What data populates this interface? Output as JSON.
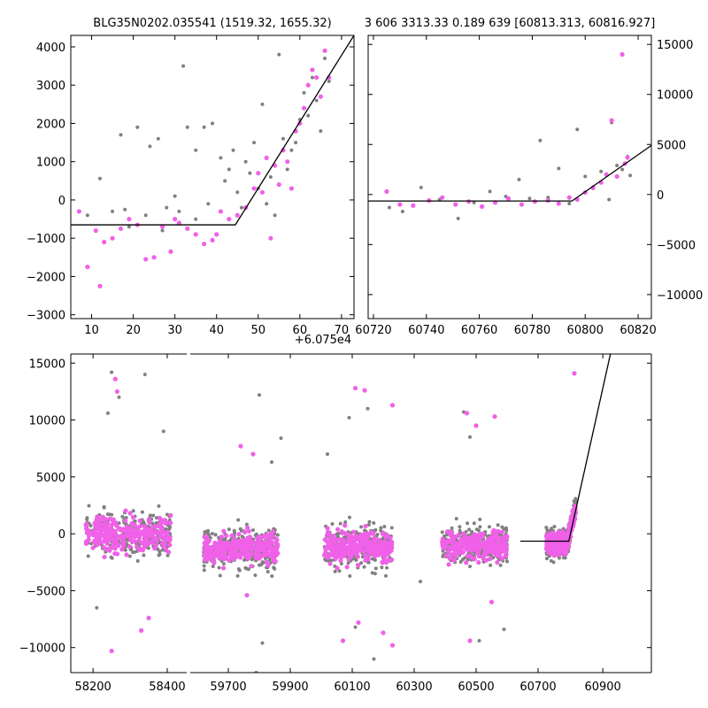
{
  "figure": {
    "title_left": "BLG35N0202.035541 (1519.32, 1655.32)",
    "title_right": "3 606 3313.33 0.189 639 [60813.313, 60816.927]",
    "offset_label": "+6.075e4"
  },
  "colors": {
    "gray": "#808080",
    "magenta": "#f060e8",
    "line": "#000000"
  },
  "chart_data": [
    {
      "name": "zoom-left",
      "type": "scatter",
      "xlim": [
        5,
        73
      ],
      "ylim": [
        -3100,
        4300
      ],
      "xticks": [
        10,
        20,
        30,
        40,
        50,
        60,
        70
      ],
      "xtick_labels": [
        "10",
        "20",
        "30",
        "40",
        "50",
        "60",
        "70"
      ],
      "yticks": [
        -3000,
        -2000,
        -1000,
        0,
        1000,
        2000,
        3000,
        4000
      ],
      "ytick_labels": [
        "−3000",
        "−2000",
        "−1000",
        "0",
        "1000",
        "2000",
        "3000",
        "4000"
      ],
      "x_offset_label": "+6.075e4",
      "series": [
        {
          "color": "#808080",
          "points": [
            [
              9,
              -400
            ],
            [
              12,
              560
            ],
            [
              15,
              -300
            ],
            [
              17,
              1700
            ],
            [
              19,
              -700
            ],
            [
              21,
              1900
            ],
            [
              24,
              1400
            ],
            [
              26,
              1600
            ],
            [
              28,
              -200
            ],
            [
              30,
              100
            ],
            [
              32,
              3500
            ],
            [
              33,
              1900
            ],
            [
              35,
              1300
            ],
            [
              37,
              1900
            ],
            [
              39,
              2000
            ],
            [
              41,
              1100
            ],
            [
              43,
              800
            ],
            [
              45,
              200
            ],
            [
              47,
              1000
            ],
            [
              49,
              1500
            ],
            [
              51,
              2500
            ],
            [
              53,
              600
            ],
            [
              55,
              3800
            ],
            [
              56,
              1600
            ],
            [
              58,
              1300
            ],
            [
              60,
              2100
            ],
            [
              62,
              2200
            ],
            [
              64,
              2600
            ],
            [
              65,
              1800
            ],
            [
              66,
              3700
            ],
            [
              35,
              -500
            ],
            [
              46,
              -200
            ],
            [
              52,
              -100
            ],
            [
              44,
              1300
            ],
            [
              48,
              700
            ],
            [
              57,
              800
            ],
            [
              59,
              1500
            ],
            [
              61,
              2800
            ],
            [
              63,
              3200
            ],
            [
              67,
              3100
            ],
            [
              18,
              -250
            ],
            [
              23,
              -400
            ],
            [
              27,
              -800
            ],
            [
              31,
              -300
            ],
            [
              38,
              -100
            ],
            [
              42,
              500
            ],
            [
              50,
              300
            ],
            [
              54,
              -400
            ]
          ]
        },
        {
          "color": "#f060e8",
          "points": [
            [
              7,
              -300
            ],
            [
              9,
              -1750
            ],
            [
              11,
              -800
            ],
            [
              12,
              -2250
            ],
            [
              13,
              -1100
            ],
            [
              15,
              -1000
            ],
            [
              17,
              -750
            ],
            [
              19,
              -500
            ],
            [
              21,
              -650
            ],
            [
              23,
              -1550
            ],
            [
              25,
              -1500
            ],
            [
              27,
              -700
            ],
            [
              29,
              -1350
            ],
            [
              31,
              -600
            ],
            [
              33,
              -750
            ],
            [
              35,
              -900
            ],
            [
              37,
              -1150
            ],
            [
              39,
              -1050
            ],
            [
              41,
              -300
            ],
            [
              43,
              -500
            ],
            [
              45,
              -400
            ],
            [
              47,
              -200
            ],
            [
              49,
              300
            ],
            [
              51,
              200
            ],
            [
              53,
              -1000
            ],
            [
              55,
              400
            ],
            [
              57,
              1000
            ],
            [
              58,
              300
            ],
            [
              59,
              1800
            ],
            [
              60,
              2000
            ],
            [
              61,
              2400
            ],
            [
              62,
              3000
            ],
            [
              63,
              3400
            ],
            [
              64,
              3200
            ],
            [
              65,
              2700
            ],
            [
              66,
              3900
            ],
            [
              67,
              3200
            ],
            [
              30,
              -500
            ],
            [
              40,
              -900
            ],
            [
              50,
              700
            ],
            [
              52,
              1100
            ],
            [
              54,
              900
            ],
            [
              56,
              1300
            ]
          ]
        }
      ],
      "model_line": [
        [
          5,
          -650
        ],
        [
          44.5,
          -650
        ],
        [
          73,
          4300
        ]
      ]
    },
    {
      "name": "zoom-right",
      "type": "scatter",
      "xlim": [
        60718,
        60825
      ],
      "ylim": [
        -12400,
        15900
      ],
      "xticks": [
        60720,
        60740,
        60760,
        60780,
        60800,
        60820
      ],
      "xtick_labels": [
        "60720",
        "60740",
        "60760",
        "60780",
        "60800",
        "60820"
      ],
      "yticks": [
        -10000,
        -5000,
        0,
        5000,
        10000,
        15000
      ],
      "ytick_labels": [
        "−10000",
        "−5000",
        "0",
        "5000",
        "10000",
        "15000"
      ],
      "series": [
        {
          "color": "#808080",
          "points": [
            [
              60726,
              -1300
            ],
            [
              60731,
              -1700
            ],
            [
              60738,
              700
            ],
            [
              60745,
              -500
            ],
            [
              60752,
              -2400
            ],
            [
              60758,
              -800
            ],
            [
              60764,
              300
            ],
            [
              60770,
              -200
            ],
            [
              60775,
              1500
            ],
            [
              60779,
              -400
            ],
            [
              60783,
              5400
            ],
            [
              60786,
              -300
            ],
            [
              60790,
              2600
            ],
            [
              60794,
              -900
            ],
            [
              60797,
              6500
            ],
            [
              60800,
              1800
            ],
            [
              60803,
              600
            ],
            [
              60806,
              2300
            ],
            [
              60809,
              -500
            ],
            [
              60810,
              7200
            ],
            [
              60812,
              2900
            ],
            [
              60814,
              2500
            ],
            [
              60816,
              3800
            ],
            [
              60817,
              1900
            ]
          ]
        },
        {
          "color": "#f060e8",
          "points": [
            [
              60725,
              300
            ],
            [
              60730,
              -1000
            ],
            [
              60735,
              -1100
            ],
            [
              60741,
              -600
            ],
            [
              60746,
              -300
            ],
            [
              60751,
              -1000
            ],
            [
              60756,
              -700
            ],
            [
              60761,
              -1200
            ],
            [
              60766,
              -800
            ],
            [
              60771,
              -400
            ],
            [
              60776,
              -1000
            ],
            [
              60781,
              -700
            ],
            [
              60786,
              -600
            ],
            [
              60790,
              -900
            ],
            [
              60794,
              -300
            ],
            [
              60797,
              -500
            ],
            [
              60800,
              200
            ],
            [
              60803,
              700
            ],
            [
              60806,
              1200
            ],
            [
              60808,
              2000
            ],
            [
              60810,
              7400
            ],
            [
              60812,
              1800
            ],
            [
              60814,
              14000
            ],
            [
              60815,
              3100
            ],
            [
              60816,
              3700
            ]
          ]
        }
      ],
      "model_line": [
        [
          60718,
          -650
        ],
        [
          60795,
          -650
        ],
        [
          60825,
          4900
        ]
      ]
    },
    {
      "name": "full-lightcurve",
      "type": "scatter",
      "ylim": [
        -12200,
        15800
      ],
      "yticks": [
        -10000,
        -5000,
        0,
        5000,
        10000,
        15000
      ],
      "ytick_labels": [
        "−10000",
        "−5000",
        "0",
        "5000",
        "10000",
        "15000"
      ],
      "segments": [
        {
          "xlim": [
            58140,
            58455
          ],
          "xticks": [
            58200,
            58400
          ],
          "xtick_labels": [
            "58200",
            "58400"
          ]
        },
        {
          "xlim": [
            59580,
            60700
          ],
          "xticks": [
            59700,
            59900,
            60100,
            60300,
            60500
          ],
          "xtick_labels": [
            "59700",
            "59900",
            "60100",
            "60300",
            "60500"
          ]
        },
        {
          "xlim": [
            60700,
            61050
          ],
          "xticks": [
            60700,
            60900
          ],
          "xtick_labels": [
            "60700",
            "60900"
          ]
        }
      ],
      "seasons": [
        {
          "x_range": [
            58180,
            58410
          ],
          "center": 0,
          "spread": 1300
        },
        {
          "x_range": [
            59620,
            59860
          ],
          "center": -1300,
          "spread": 1100
        },
        {
          "x_range": [
            60010,
            60230
          ],
          "center": -1100,
          "spread": 1100
        },
        {
          "x_range": [
            60390,
            60600
          ],
          "center": -1000,
          "spread": 1000
        },
        {
          "x_range": [
            60725,
            60817
          ],
          "center": -800,
          "spread": 700
        }
      ],
      "outliers": [
        {
          "color": "#808080",
          "points": [
            [
              58250,
              14200
            ],
            [
              58240,
              10600
            ],
            [
              58270,
              12000
            ],
            [
              58340,
              14000
            ],
            [
              58390,
              9000
            ],
            [
              58210,
              -6500
            ],
            [
              59800,
              12200
            ],
            [
              59870,
              8400
            ],
            [
              59840,
              6300
            ],
            [
              59810,
              -9600
            ],
            [
              59790,
              -12200
            ],
            [
              60090,
              10200
            ],
            [
              60150,
              11000
            ],
            [
              60170,
              -11000
            ],
            [
              60110,
              -8200
            ],
            [
              60460,
              10700
            ],
            [
              60480,
              8500
            ],
            [
              60510,
              -9400
            ],
            [
              60590,
              -8400
            ],
            [
              60320,
              -4200
            ],
            [
              60020,
              7000
            ]
          ]
        },
        {
          "color": "#f060e8",
          "points": [
            [
              58260,
              13600
            ],
            [
              58265,
              12500
            ],
            [
              58250,
              -10300
            ],
            [
              58330,
              -8500
            ],
            [
              58350,
              -7400
            ],
            [
              59740,
              7700
            ],
            [
              59780,
              7000
            ],
            [
              59760,
              -5400
            ],
            [
              60110,
              12800
            ],
            [
              60140,
              12600
            ],
            [
              60230,
              11300
            ],
            [
              60070,
              -9400
            ],
            [
              60120,
              -7800
            ],
            [
              60200,
              -8700
            ],
            [
              60230,
              -9800
            ],
            [
              60470,
              10600
            ],
            [
              60500,
              9500
            ],
            [
              60560,
              10300
            ],
            [
              60480,
              -9400
            ],
            [
              60550,
              -6000
            ],
            [
              60812,
              14100
            ]
          ]
        }
      ],
      "model_line": [
        [
          60645,
          -650
        ],
        [
          60795,
          -650
        ],
        [
          61050,
          32000
        ]
      ]
    }
  ]
}
